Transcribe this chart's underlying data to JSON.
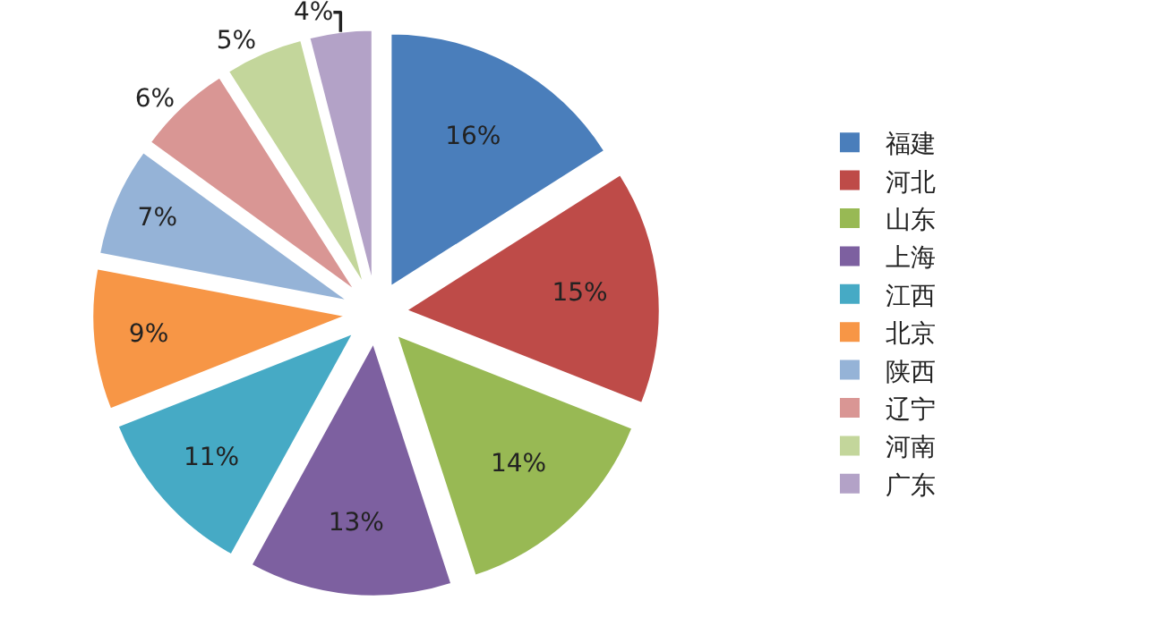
{
  "chart_data": {
    "type": "pie",
    "categories": [
      "福建",
      "河北",
      "山东",
      "上海",
      "江西",
      "北京",
      "陕西",
      "辽宁",
      "河南",
      "广东"
    ],
    "values": [
      16,
      15,
      14,
      13,
      11,
      9,
      7,
      6,
      5,
      4
    ],
    "colors": [
      "#4a7ebb",
      "#be4b48",
      "#98b954",
      "#7d60a0",
      "#46aac5",
      "#f79646",
      "#95b3d7",
      "#d99694",
      "#c3d69b",
      "#b3a2c7"
    ],
    "value_labels": [
      "16%",
      "15%",
      "14%",
      "13%",
      "11%",
      "9%",
      "7%",
      "6%",
      "5%",
      "4%"
    ],
    "legend": "right"
  }
}
